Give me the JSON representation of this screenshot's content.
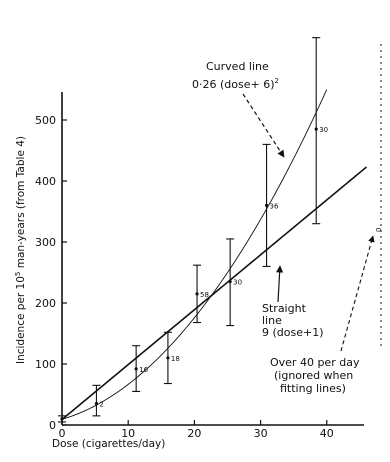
{
  "chart_data": {
    "type": "line",
    "xlabel": "Dose (cigarettes/day)",
    "ylabel": "Incidence per 10⁵ man-years (from Table 4)",
    "xlim": [
      0,
      48
    ],
    "ylim": [
      0,
      560
    ],
    "x_ticks": [
      0,
      10,
      20,
      30,
      40
    ],
    "y_ticks": [
      0,
      100,
      200,
      300,
      400,
      500
    ],
    "grid": false,
    "points": [
      {
        "x": 0,
        "y": 10,
        "lo": 5,
        "hi": 15,
        "label": ""
      },
      {
        "x": 5.2,
        "y": 35,
        "lo": 15,
        "hi": 65,
        "label": "2"
      },
      {
        "x": 11.2,
        "y": 92,
        "lo": 55,
        "hi": 130,
        "label": "16"
      },
      {
        "x": 16,
        "y": 110,
        "lo": 68,
        "hi": 152,
        "label": "18"
      },
      {
        "x": 20.4,
        "y": 215,
        "lo": 168,
        "hi": 262,
        "label": "58"
      },
      {
        "x": 25.4,
        "y": 235,
        "lo": 163,
        "hi": 305,
        "label": "30"
      },
      {
        "x": 30.9,
        "y": 360,
        "lo": 260,
        "hi": 460,
        "label": "36"
      },
      {
        "x": 38.4,
        "y": 485,
        "lo": 330,
        "hi": 635,
        "label": "30"
      }
    ],
    "series": [
      {
        "name": "Straight line 9 (dose+1)",
        "kind": "linear",
        "slope": 9,
        "offset": 1,
        "x_range": [
          0,
          46
        ],
        "style": "solid"
      },
      {
        "name": "Curved line 0·26 (dose+6)²",
        "kind": "quadratic",
        "coef": 0.26,
        "offset": 6,
        "x_range": [
          0,
          40
        ],
        "style": "solid-thin"
      }
    ],
    "annotations": {
      "curved_line_1": "Curved line",
      "curved_line_2_main": "0·26 (dose+ 6)",
      "curved_line_2_sup": "2",
      "straight_1": "Straight",
      "straight_2": "line",
      "straight_3": "9 (dose+1)",
      "over40_1": "Over 40 per day",
      "over40_2": "(ignored when",
      "over40_3": "fitting lines)",
      "over40_point_label": "0"
    }
  }
}
